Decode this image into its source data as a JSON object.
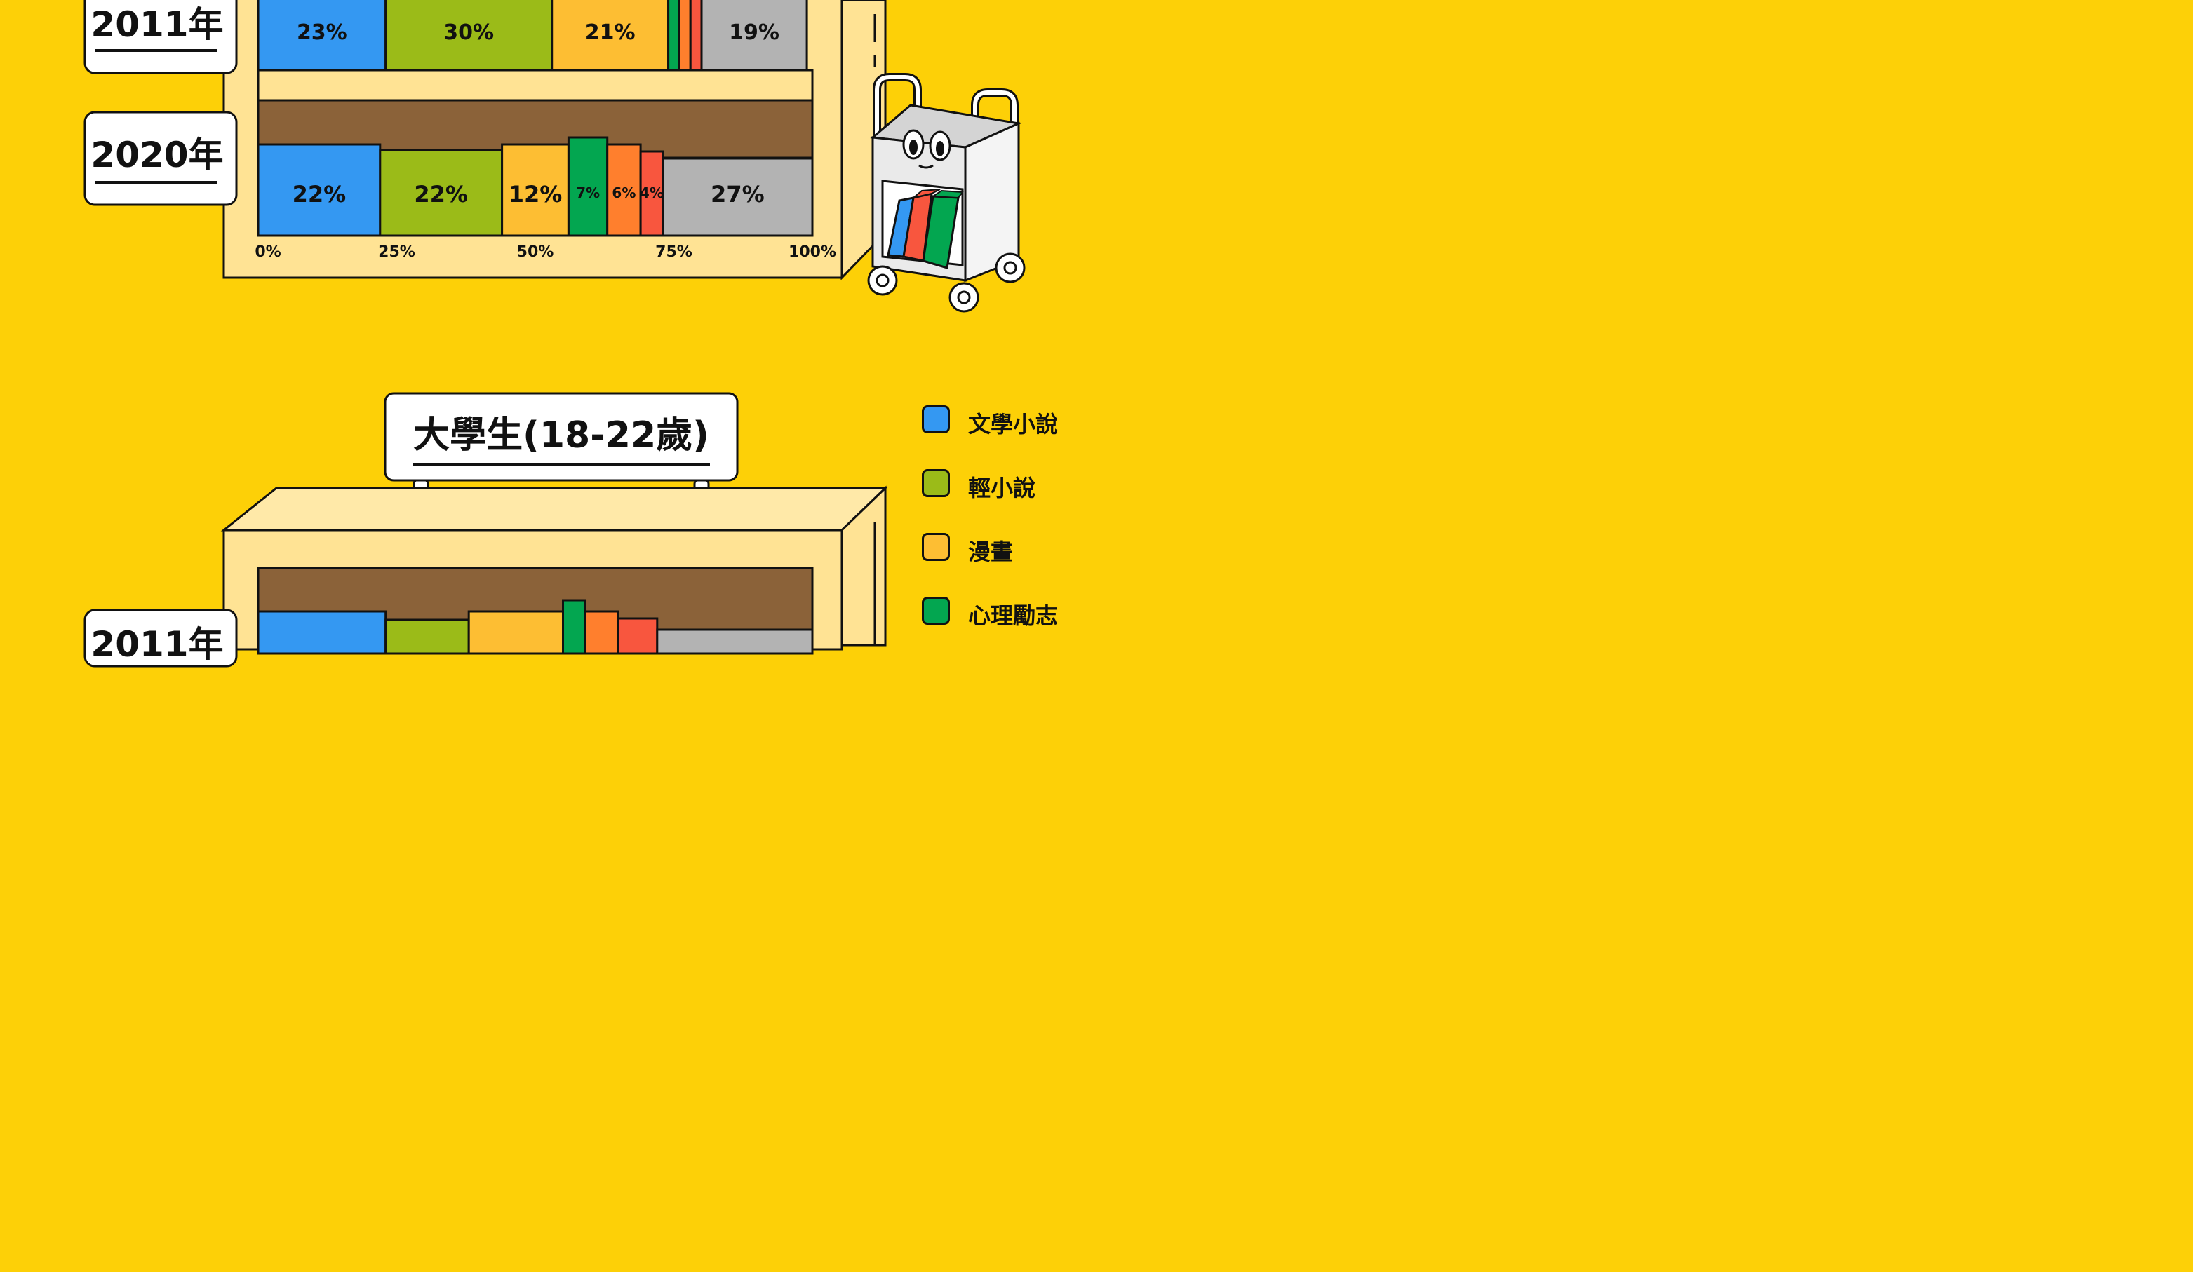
{
  "colors": {
    "background": "#FDD007",
    "shelf_front": "#FFE394",
    "shelf_top": "#FFE9A8",
    "shelf_back": "#8B6239",
    "outline": "#111111"
  },
  "chart_data": [
    {
      "type": "bar",
      "orientation": "horizontal-stacked",
      "title": "",
      "categories": [
        "2011年",
        "2020年"
      ],
      "x_ticks": [
        "0%",
        "25%",
        "50%",
        "75%",
        "100%"
      ],
      "xlim": [
        0,
        100
      ],
      "series": [
        {
          "name": "文學小說",
          "color": "#3498F2",
          "values": [
            23,
            22
          ],
          "labels": [
            "23%",
            "22%"
          ]
        },
        {
          "name": "輕小說",
          "color": "#9BBB18",
          "values": [
            30,
            22
          ],
          "labels": [
            "30%",
            "22%"
          ]
        },
        {
          "name": "漫畫",
          "color": "#FDBE33",
          "values": [
            21,
            12
          ],
          "labels": [
            "21%",
            "12%"
          ]
        },
        {
          "name": "心理勵志",
          "color": "#03A650",
          "values": [
            2,
            7
          ],
          "labels": [
            "",
            "7%"
          ]
        },
        {
          "name": "",
          "color": "#FF7F2D",
          "values": [
            2,
            6
          ],
          "labels": [
            "",
            "6%"
          ]
        },
        {
          "name": "",
          "color": "#F8563E",
          "values": [
            2,
            4
          ],
          "labels": [
            "",
            "4%"
          ]
        },
        {
          "name": "",
          "color": "#B3B3B3",
          "values": [
            19,
            27
          ],
          "labels": [
            "19%",
            "27%"
          ]
        }
      ]
    },
    {
      "type": "bar",
      "orientation": "horizontal-stacked",
      "title": "大學生(18-22歲)",
      "categories": [
        "2011年"
      ],
      "xlim": [
        0,
        100
      ],
      "series": [
        {
          "name": "文學小說",
          "color": "#3498F2",
          "values": [
            23
          ]
        },
        {
          "name": "輕小說",
          "color": "#9BBB18",
          "values": [
            15
          ]
        },
        {
          "name": "漫畫",
          "color": "#FDBE33",
          "values": [
            17
          ]
        },
        {
          "name": "心理勵志",
          "color": "#03A650",
          "values": [
            4
          ]
        },
        {
          "name": "",
          "color": "#FF7F2D",
          "values": [
            6
          ]
        },
        {
          "name": "",
          "color": "#F8563E",
          "values": [
            7
          ]
        },
        {
          "name": "",
          "color": "#B3B3B3",
          "values": [
            28
          ]
        }
      ]
    }
  ],
  "legend": [
    {
      "label": "文學小說",
      "color": "#3498F2"
    },
    {
      "label": "輕小說",
      "color": "#9BBB18"
    },
    {
      "label": "漫畫",
      "color": "#FDBE33"
    },
    {
      "label": "心理勵志",
      "color": "#03A650"
    }
  ]
}
